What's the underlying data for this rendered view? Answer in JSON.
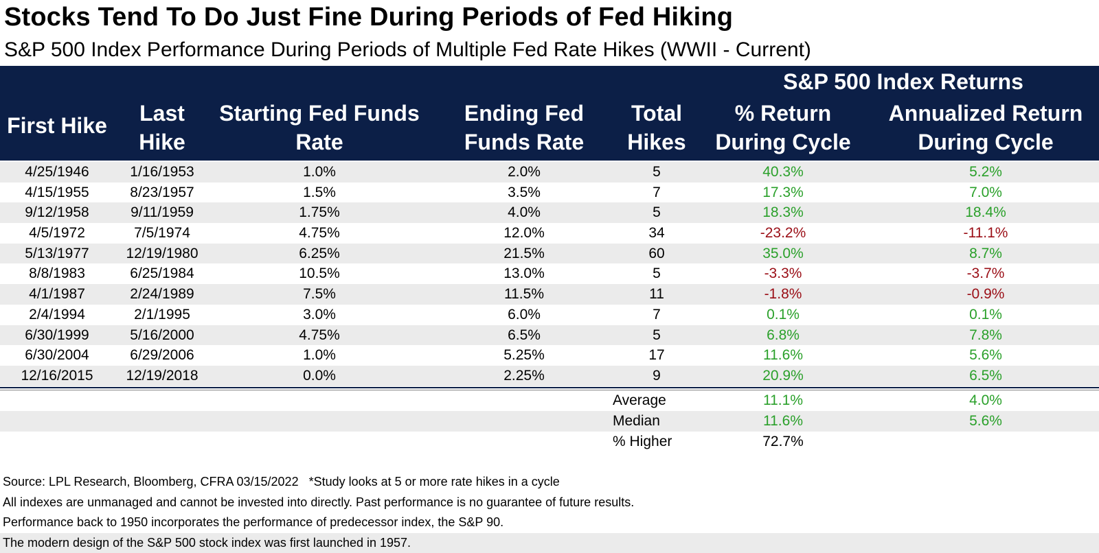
{
  "title": "Stocks Tend To Do Just Fine During Periods of Fed Hiking",
  "subtitle": "S&P 500 Index Performance During Periods of Multiple Fed Rate Hikes (WWII - Current)",
  "header": {
    "group": "S&P 500 Index Returns",
    "first_hike": "First Hike",
    "last_hike": [
      "Last",
      "Hike"
    ],
    "starting_rate": [
      "Starting Fed Funds",
      "Rate"
    ],
    "ending_rate": [
      "Ending Fed",
      "Funds Rate"
    ],
    "total_hikes": [
      "Total",
      "Hikes"
    ],
    "return_cycle": [
      "% Return",
      "During Cycle"
    ],
    "annualized": [
      "Annualized Return",
      "During Cycle"
    ]
  },
  "rows": [
    [
      "4/25/1946",
      "1/16/1953",
      "1.0%",
      "2.0%",
      "5",
      "40.3%",
      "5.2%"
    ],
    [
      "4/15/1955",
      "8/23/1957",
      "1.5%",
      "3.5%",
      "7",
      "17.3%",
      "7.0%"
    ],
    [
      "9/12/1958",
      "9/11/1959",
      "1.75%",
      "4.0%",
      "5",
      "18.3%",
      "18.4%"
    ],
    [
      "4/5/1972",
      "7/5/1974",
      "4.75%",
      "12.0%",
      "34",
      "-23.2%",
      "-11.1%"
    ],
    [
      "5/13/1977",
      "12/19/1980",
      "6.25%",
      "21.5%",
      "60",
      "35.0%",
      "8.7%"
    ],
    [
      "8/8/1983",
      "6/25/1984",
      "10.5%",
      "13.0%",
      "5",
      "-3.3%",
      "-3.7%"
    ],
    [
      "4/1/1987",
      "2/24/1989",
      "7.5%",
      "11.5%",
      "11",
      "-1.8%",
      "-0.9%"
    ],
    [
      "2/4/1994",
      "2/1/1995",
      "3.0%",
      "6.0%",
      "7",
      "0.1%",
      "0.1%"
    ],
    [
      "6/30/1999",
      "5/16/2000",
      "4.75%",
      "6.5%",
      "5",
      "6.8%",
      "7.8%"
    ],
    [
      "6/30/2004",
      "6/29/2006",
      "1.0%",
      "5.25%",
      "17",
      "11.6%",
      "5.6%"
    ],
    [
      "12/16/2015",
      "12/19/2018",
      "0.0%",
      "2.25%",
      "9",
      "20.9%",
      "6.5%"
    ]
  ],
  "stats": [
    {
      "label": "Average",
      "return": "11.1%",
      "annualized": "4.0%"
    },
    {
      "label": "Median",
      "return": "11.6%",
      "annualized": "5.6%"
    },
    {
      "label": "% Higher",
      "return": "72.7%",
      "annualized": ""
    }
  ],
  "notes": [
    "Source: LPL Research, Bloomberg, CFRA 03/15/2022   *Study looks at 5 or more rate hikes in a cycle",
    "All indexes are unmanaged and cannot be invested into directly. Past performance is no guarantee of future results.",
    "Performance back to 1950 incorporates the performance of predecessor index, the S&P 90.",
    "The modern design of the S&P 500 stock index was first launched in 1957."
  ],
  "colors": {
    "header_bg": "#0c1f47",
    "positive": "#2aa02a",
    "negative": "#9a0e16",
    "row_shade": "#ebebeb"
  },
  "chart_data": {
    "type": "table",
    "columns": [
      "First Hike",
      "Last Hike",
      "Starting Fed Funds Rate",
      "Ending Fed Funds Rate",
      "Total Hikes",
      "% Return During Cycle",
      "Annualized Return During Cycle"
    ],
    "column_group": "S&P 500 Index Returns"
  }
}
